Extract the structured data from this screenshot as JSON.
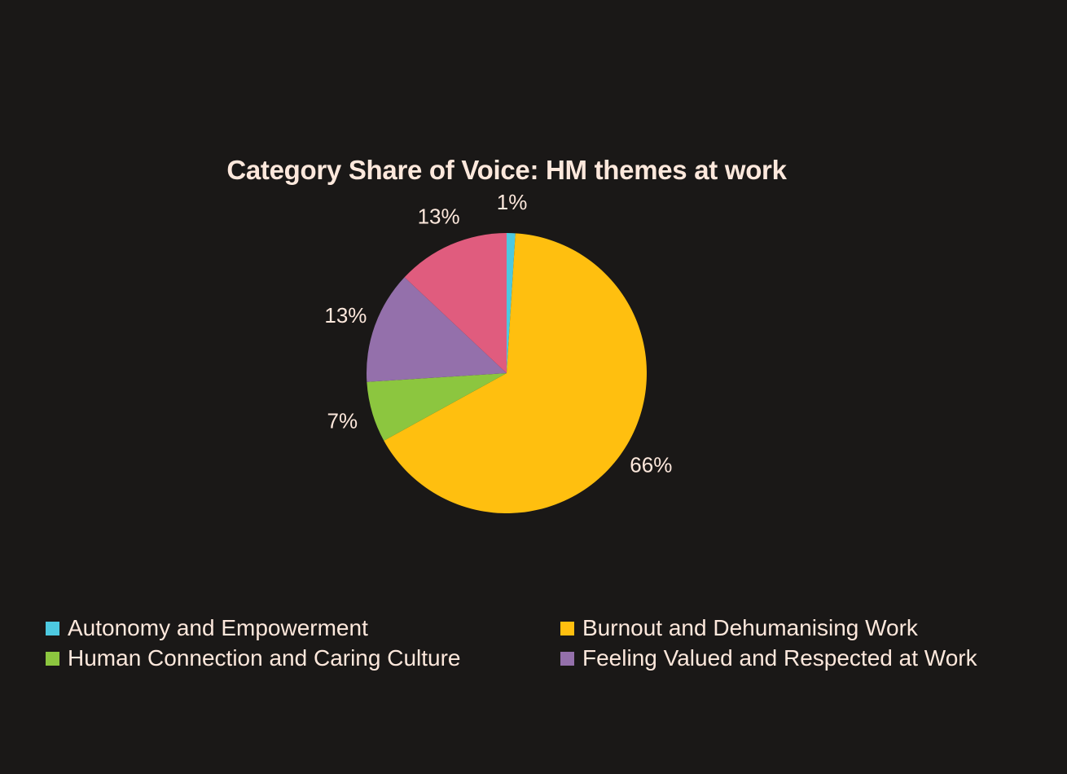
{
  "chart_data": {
    "type": "pie",
    "title": "Category Share of Voice: HM themes at work",
    "start_angle_deg": 0,
    "direction": "clockwise",
    "slices": [
      {
        "name": "Autonomy and Empowerment",
        "value": 1,
        "label": "1%",
        "color": "#4dc9e0"
      },
      {
        "name": "Burnout and Dehumanising Work",
        "value": 66,
        "label": "66%",
        "color": "#ffbf0f"
      },
      {
        "name": "Human Connection and Caring Culture",
        "value": 7,
        "label": "7%",
        "color": "#8cc63f"
      },
      {
        "name": "Feeling Valued and Respected at Work",
        "value": 13,
        "label": "13%",
        "color": "#9470ab"
      },
      {
        "name": "",
        "value": 13,
        "label": "13%",
        "color": "#e05c7e"
      }
    ],
    "legend": {
      "position": "bottom",
      "items": [
        {
          "label": "Autonomy and Empowerment",
          "color": "#4dc9e0"
        },
        {
          "label": "Burnout and Dehumanising Work",
          "color": "#ffbf0f"
        },
        {
          "label": "Human Connection and Caring Culture",
          "color": "#8cc63f"
        },
        {
          "label": "Feeling Valued and Respected at Work",
          "color": "#9470ab"
        }
      ]
    }
  },
  "colors": {
    "background": "#1a1817",
    "text": "#fde8dc"
  }
}
